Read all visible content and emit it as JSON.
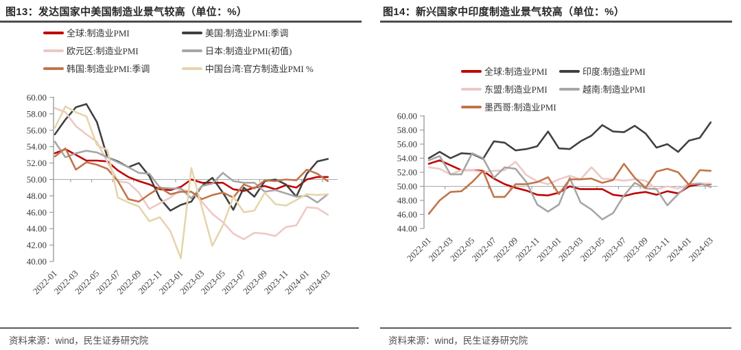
{
  "footer": {
    "source_text": "资料来源：wind，民生证券研究院"
  },
  "chart_data": [
    {
      "type": "line",
      "title": "图13：发达国家中美国制造业景气较高（单位：%）",
      "xlabel": "",
      "ylabel": "",
      "ylim": [
        40,
        60
      ],
      "ytick_step": 2,
      "ytick_decimals": 2,
      "category_axis_at": 50,
      "grid": false,
      "legend_position": "top",
      "x_label_every": 2,
      "x": [
        "2022-01",
        "2022-02",
        "2022-03",
        "2022-04",
        "2022-05",
        "2022-06",
        "2022-07",
        "2022-08",
        "2022-09",
        "2022-10",
        "2022-11",
        "2022-12",
        "2023-01",
        "2023-02",
        "2023-03",
        "2023-04",
        "2023-05",
        "2023-06",
        "2023-07",
        "2023-08",
        "2023-09",
        "2023-10",
        "2023-11",
        "2023-12",
        "2024-01",
        "2024-02",
        "2024-03"
      ],
      "series": [
        {
          "name": "全球:制造业PMI",
          "color": "#C00000",
          "values": [
            53.2,
            53.7,
            53.0,
            52.3,
            52.3,
            52.2,
            51.1,
            50.3,
            49.8,
            49.4,
            48.8,
            48.7,
            49.1,
            50.0,
            49.6,
            49.6,
            49.6,
            48.8,
            48.6,
            49.0,
            49.2,
            48.8,
            49.3,
            49.0,
            50.0,
            50.3,
            50.3
          ]
        },
        {
          "name": "美国:制造业PMI:季调",
          "color": "#404040",
          "values": [
            55.5,
            57.3,
            58.8,
            59.2,
            57.0,
            52.7,
            52.2,
            51.5,
            52.0,
            50.4,
            47.7,
            46.2,
            46.9,
            47.3,
            49.2,
            50.2,
            48.4,
            46.3,
            49.0,
            47.9,
            49.8,
            50.0,
            49.4,
            47.9,
            50.7,
            52.2,
            52.5
          ]
        },
        {
          "name": "欧元区:制造业PMI",
          "color": "#EDC8C6",
          "values": [
            58.7,
            58.2,
            56.5,
            55.5,
            54.6,
            52.1,
            49.8,
            49.6,
            48.4,
            46.4,
            47.1,
            47.8,
            48.8,
            48.5,
            47.3,
            45.8,
            44.8,
            43.4,
            42.7,
            43.5,
            43.4,
            43.1,
            44.2,
            44.4,
            46.6,
            46.5,
            45.7
          ]
        },
        {
          "name": "日本:制造业PMI(初值)",
          "color": "#A6A6A6",
          "values": [
            54.6,
            52.7,
            53.2,
            53.5,
            53.3,
            52.7,
            52.1,
            51.5,
            50.8,
            50.7,
            49.0,
            48.9,
            48.9,
            47.7,
            49.2,
            49.5,
            50.8,
            49.8,
            49.6,
            49.6,
            48.5,
            48.7,
            48.3,
            47.9,
            48.0,
            47.2,
            48.2
          ]
        },
        {
          "name": "韩国:制造业PMI:季调",
          "color": "#C1744A",
          "values": [
            52.8,
            53.8,
            51.2,
            52.1,
            51.8,
            51.3,
            49.8,
            47.6,
            47.3,
            48.2,
            49.0,
            48.2,
            48.5,
            48.5,
            47.6,
            48.1,
            48.4,
            47.8,
            49.4,
            48.9,
            49.9,
            49.8,
            50.0,
            49.9,
            51.2,
            50.7,
            49.8
          ]
        },
        {
          "name": "中国台湾:官方制造业PMI %",
          "color": "#E5D5AB",
          "values": [
            56.3,
            58.9,
            58.2,
            57.7,
            54.2,
            53.6,
            47.8,
            47.2,
            46.7,
            44.9,
            45.4,
            43.7,
            40.4,
            51.4,
            46.6,
            41.9,
            44.4,
            47.9,
            46.0,
            46.2,
            48.4,
            47.0,
            46.8,
            47.5,
            48.2,
            48.1,
            48.2
          ]
        }
      ]
    },
    {
      "type": "line",
      "title": "图14：新兴国家中印度制造业景气较高（单位：%）",
      "xlabel": "",
      "ylabel": "",
      "ylim": [
        44,
        60
      ],
      "ytick_step": 2,
      "ytick_decimals": 2,
      "category_axis_at": 50,
      "grid": false,
      "legend_position": "top",
      "x_label_every": 2,
      "x": [
        "2022-01",
        "2022-02",
        "2022-03",
        "2022-04",
        "2022-05",
        "2022-06",
        "2022-07",
        "2022-08",
        "2022-09",
        "2022-10",
        "2022-11",
        "2022-12",
        "2023-01",
        "2023-02",
        "2023-03",
        "2023-04",
        "2023-05",
        "2023-06",
        "2023-07",
        "2023-08",
        "2023-09",
        "2023-10",
        "2023-11",
        "2023-12",
        "2024-01",
        "2024-02",
        "2024-03"
      ],
      "series": [
        {
          "name": "全球:制造业PMI",
          "color": "#C00000",
          "values": [
            53.2,
            53.7,
            53.0,
            52.3,
            52.3,
            52.2,
            51.1,
            50.3,
            49.8,
            49.4,
            48.8,
            48.7,
            49.1,
            50.0,
            49.6,
            49.6,
            49.6,
            48.8,
            48.6,
            49.0,
            49.2,
            48.8,
            49.3,
            49.0,
            50.0,
            50.3,
            50.3
          ]
        },
        {
          "name": "印度:制造业PMI",
          "color": "#404040",
          "values": [
            54.0,
            54.9,
            54.0,
            54.7,
            54.6,
            53.9,
            56.4,
            56.2,
            55.1,
            55.3,
            55.7,
            57.8,
            55.4,
            55.3,
            56.4,
            57.2,
            58.7,
            57.8,
            57.7,
            58.6,
            57.5,
            55.5,
            56.0,
            54.9,
            56.5,
            56.9,
            59.1
          ]
        },
        {
          "name": "东盟:制造业PMI",
          "color": "#EDC8C6",
          "values": [
            52.7,
            52.5,
            51.7,
            52.3,
            52.3,
            52.0,
            52.2,
            52.3,
            53.5,
            51.6,
            50.7,
            50.3,
            51.0,
            51.5,
            51.0,
            52.7,
            51.1,
            51.0,
            50.8,
            51.0,
            50.8,
            49.6,
            50.0,
            49.7,
            50.3,
            50.4,
            50.4
          ]
        },
        {
          "name": "越南:制造业PMI",
          "color": "#A6A6A6",
          "values": [
            53.7,
            54.3,
            51.7,
            51.7,
            54.7,
            54.0,
            51.2,
            52.7,
            52.5,
            50.6,
            47.4,
            46.4,
            47.4,
            51.2,
            47.7,
            46.7,
            45.3,
            46.2,
            48.7,
            50.5,
            49.7,
            49.6,
            47.3,
            48.9,
            50.3,
            50.4,
            49.9
          ]
        },
        {
          "name": "墨西哥:制造业PMI",
          "color": "#C1744A",
          "values": [
            46.1,
            48.0,
            49.2,
            49.3,
            50.6,
            52.2,
            48.5,
            48.5,
            50.3,
            50.3,
            50.6,
            51.3,
            48.9,
            51.0,
            51.0,
            51.1,
            50.5,
            50.9,
            53.2,
            51.2,
            49.8,
            52.1,
            52.5,
            52.0,
            50.2,
            52.3,
            52.2
          ]
        }
      ]
    }
  ]
}
